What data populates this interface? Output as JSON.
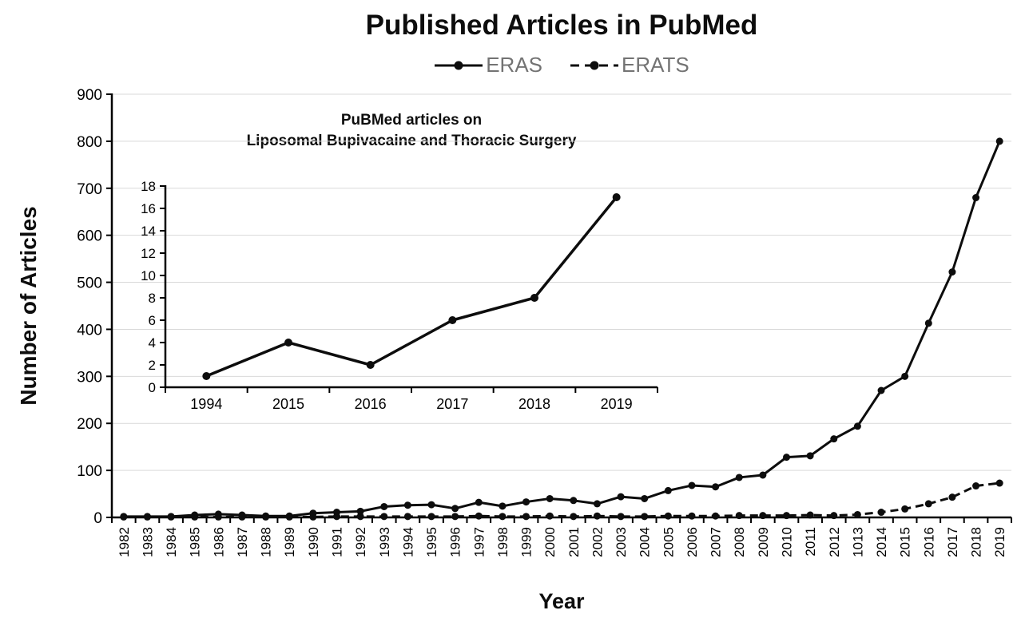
{
  "colors": {
    "series": "#0d0d0d",
    "axis": "#000000",
    "gridline": "#d9d9d9",
    "tick_label": "#000000",
    "legend_text": "#737373",
    "background": "#ffffff"
  },
  "chart_data": [
    {
      "id": "main",
      "type": "line",
      "title": "Published Articles in PubMed",
      "xlabel": "Year",
      "ylabel": "Number of Articles",
      "ylim": [
        0,
        900
      ],
      "ytick_step": 100,
      "grid": true,
      "legend_position": "top",
      "categories": [
        "1982",
        "1983",
        "1984",
        "1985",
        "1986",
        "1987",
        "1988",
        "1989",
        "1990",
        "1991",
        "1992",
        "1993",
        "1994",
        "1995",
        "1996",
        "1997",
        "1998",
        "1999",
        "2000",
        "2001",
        "2002",
        "2003",
        "2004",
        "2005",
        "2006",
        "2007",
        "2008",
        "2009",
        "2010",
        "2011",
        "2012",
        "1013",
        "2014",
        "2015",
        "2016",
        "2017",
        "2018",
        "2019"
      ],
      "series": [
        {
          "name": "ERAS",
          "line": "solid",
          "marker": "circle",
          "values": [
            2,
            2,
            2,
            5,
            7,
            5,
            3,
            3,
            9,
            11,
            13,
            23,
            26,
            27,
            19,
            32,
            24,
            33,
            40,
            36,
            29,
            44,
            40,
            57,
            68,
            65,
            85,
            90,
            128,
            131,
            167,
            194,
            270,
            300,
            413,
            522,
            680,
            800
          ]
        },
        {
          "name": "ERATS",
          "line": "dashed",
          "marker": "circle",
          "values": [
            1,
            1,
            1,
            1,
            1,
            1,
            1,
            1,
            1,
            2,
            2,
            2,
            2,
            2,
            2,
            3,
            2,
            2,
            3,
            2,
            3,
            2,
            2,
            3,
            3,
            3,
            4,
            4,
            4,
            5,
            4,
            6,
            11,
            18,
            29,
            43,
            67,
            73
          ]
        }
      ]
    },
    {
      "id": "inset",
      "type": "line",
      "title_lines": [
        "PuBMed articles on",
        "Liposomal Bupivacaine and Thoracic Surgery"
      ],
      "xlabel": "",
      "ylabel": "",
      "ylim": [
        0,
        18
      ],
      "ytick_step": 2,
      "grid": false,
      "categories": [
        "1994",
        "2015",
        "2016",
        "2017",
        "2018",
        "2019"
      ],
      "series": [
        {
          "name": "Liposomal Bupivacaine and Thoracic Surgery",
          "line": "solid",
          "marker": "circle",
          "values": [
            1,
            4,
            2,
            6,
            8,
            17
          ]
        }
      ]
    }
  ]
}
